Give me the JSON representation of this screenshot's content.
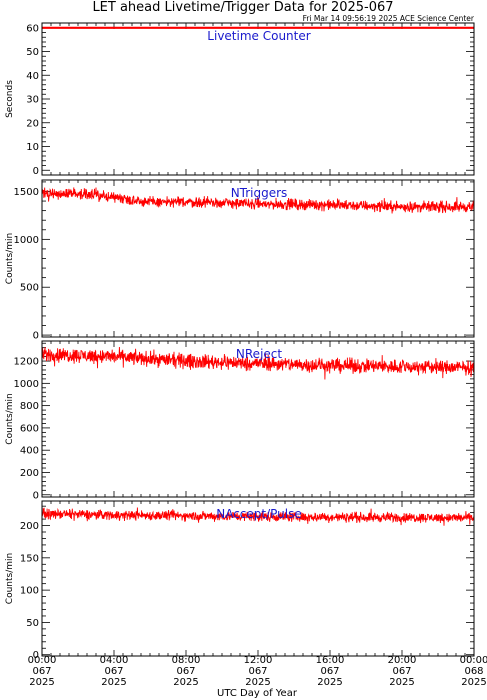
{
  "title": "LET ahead Livetime/Trigger Data for 2025-067",
  "subtitle": "Fri Mar 14 09:56:19 2025 ACE Science Center",
  "xlabel": "UTC Day of Year",
  "colors": {
    "series": "#ff0000",
    "panel_title": "#1a1acc",
    "frame": "#000000"
  },
  "x_ticks": [
    {
      "time": "00:00",
      "doy": "067",
      "year": "2025"
    },
    {
      "time": "04:00",
      "doy": "067",
      "year": "2025"
    },
    {
      "time": "08:00",
      "doy": "067",
      "year": "2025"
    },
    {
      "time": "12:00",
      "doy": "067",
      "year": "2025"
    },
    {
      "time": "16:00",
      "doy": "067",
      "year": "2025"
    },
    {
      "time": "20:00",
      "doy": "067",
      "year": "2025"
    },
    {
      "time": "00:00",
      "doy": "068",
      "year": "2025"
    }
  ],
  "chart_data": [
    {
      "type": "line",
      "title": "Livetime Counter",
      "ylabel": "Seconds",
      "ylim": [
        -2,
        62
      ],
      "yticks": [
        0,
        10,
        20,
        30,
        40,
        50,
        60
      ],
      "x_hours": [
        0,
        24
      ],
      "series": [
        {
          "baseline": [
            [
              0,
              60
            ],
            [
              24,
              60
            ]
          ],
          "noise": 0
        }
      ]
    },
    {
      "type": "line",
      "title": "NTriggers",
      "ylabel": "Counts/min",
      "ylim": [
        -20,
        1620
      ],
      "yticks": [
        0,
        500,
        1000,
        1500
      ],
      "x_hours": [
        0,
        24
      ],
      "series": [
        {
          "baseline": [
            [
              0,
              1480
            ],
            [
              2,
              1480
            ],
            [
              4,
              1440
            ],
            [
              6,
              1390
            ],
            [
              8,
              1390
            ],
            [
              12,
              1370
            ],
            [
              16,
              1360
            ],
            [
              20,
              1340
            ],
            [
              24,
              1340
            ]
          ],
          "noise": 60
        }
      ]
    },
    {
      "type": "line",
      "title": "NReject",
      "ylabel": "Counts/min",
      "ylim": [
        -20,
        1380
      ],
      "yticks": [
        0,
        200,
        400,
        600,
        800,
        1000,
        1200
      ],
      "x_hours": [
        0,
        24
      ],
      "series": [
        {
          "baseline": [
            [
              0,
              1260
            ],
            [
              4,
              1240
            ],
            [
              8,
              1200
            ],
            [
              12,
              1180
            ],
            [
              16,
              1160
            ],
            [
              20,
              1150
            ],
            [
              24,
              1140
            ]
          ],
          "noise": 70
        }
      ]
    },
    {
      "type": "line",
      "title": "NAccept/Pulse",
      "ylabel": "Counts/min",
      "ylim": [
        -2,
        238
      ],
      "yticks": [
        0,
        50,
        100,
        150,
        200
      ],
      "x_hours": [
        0,
        24
      ],
      "series": [
        {
          "baseline": [
            [
              0,
              218
            ],
            [
              8,
              215
            ],
            [
              16,
              213
            ],
            [
              24,
              212
            ]
          ],
          "noise": 8
        }
      ]
    }
  ]
}
